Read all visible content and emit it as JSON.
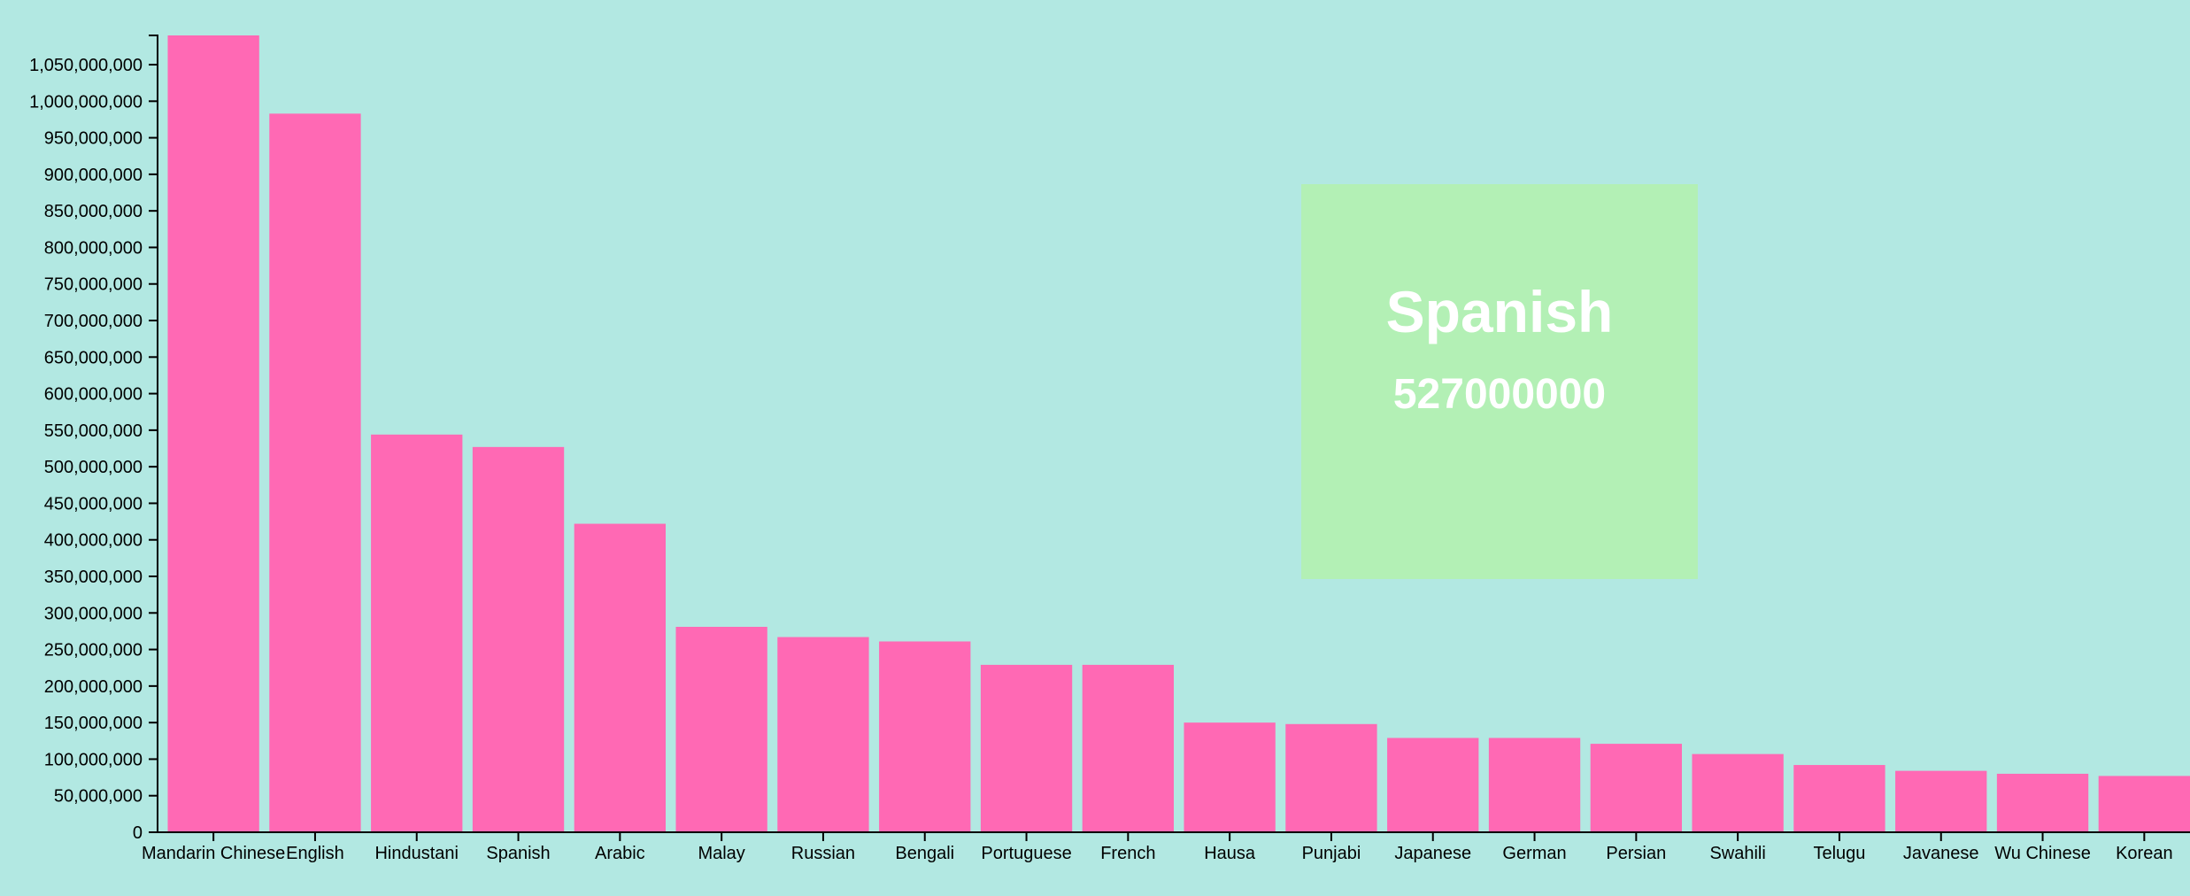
{
  "chart_data": {
    "type": "bar",
    "categories": [
      "Mandarin Chinese",
      "English",
      "Hindustani",
      "Spanish",
      "Arabic",
      "Malay",
      "Russian",
      "Bengali",
      "Portuguese",
      "French",
      "Hausa",
      "Punjabi",
      "Japanese",
      "German",
      "Persian",
      "Swahili",
      "Telugu",
      "Javanese",
      "Wu Chinese",
      "Korean"
    ],
    "values": [
      1090000000,
      983000000,
      544000000,
      527000000,
      422000000,
      281000000,
      267000000,
      261000000,
      229000000,
      229000000,
      150000000,
      148000000,
      129000000,
      129000000,
      121000000,
      107000000,
      92000000,
      84000000,
      80000000,
      77000000
    ],
    "ylim": [
      0,
      1090000000
    ],
    "y_ticks": [
      0,
      50000000,
      100000000,
      150000000,
      200000000,
      250000000,
      300000000,
      350000000,
      400000000,
      450000000,
      500000000,
      550000000,
      600000000,
      650000000,
      700000000,
      750000000,
      800000000,
      850000000,
      900000000,
      950000000,
      1000000000,
      1050000000
    ],
    "y_tick_labels": [
      "0",
      "50,000,000",
      "100,000,000",
      "150,000,000",
      "200,000,000",
      "250,000,000",
      "300,000,000",
      "350,000,000",
      "400,000,000",
      "450,000,000",
      "500,000,000",
      "550,000,000",
      "600,000,000",
      "650,000,000",
      "700,000,000",
      "750,000,000",
      "800,000,000",
      "850,000,000",
      "900,000,000",
      "950,000,000",
      "1,000,000,000",
      "1,050,000,000"
    ],
    "title": "",
    "xlabel": "",
    "ylabel": "",
    "grid": false,
    "bar_color": "#ff69b4",
    "background_color": "#b2e8e2"
  },
  "tooltip": {
    "title": "Spanish",
    "value": "527000000",
    "background_color": "#b3f0b5",
    "text_color": "#ffffff"
  }
}
